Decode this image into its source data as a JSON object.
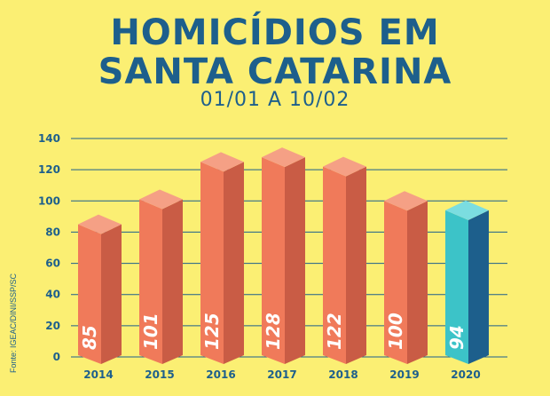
{
  "title_line1": "HOMICÍDIOS EM",
  "title_line2": "SANTA CATARINA",
  "subtitle": "01/01 A 10/02",
  "source": "Fonte: IGEAC/DINI/SSP/SC",
  "colors": {
    "background": "#fbef73",
    "text": "#1d5f8c",
    "bar_front": "#f07a5a",
    "bar_side": "#c95c45",
    "bar_top": "#f5a085",
    "highlight_front": "#3cc3c8",
    "highlight_side": "#1d5f8c",
    "highlight_top": "#7bdde0"
  },
  "chart_data": {
    "type": "bar",
    "title": "HOMICÍDIOS EM SANTA CATARINA",
    "subtitle": "01/01 A 10/02",
    "categories": [
      "2014",
      "2015",
      "2016",
      "2017",
      "2018",
      "2019",
      "2020"
    ],
    "values": [
      85,
      101,
      125,
      128,
      122,
      100,
      94
    ],
    "highlight": "2020",
    "ylim": [
      0,
      140
    ],
    "yticks": [
      0,
      20,
      40,
      60,
      80,
      100,
      120,
      140
    ],
    "grid": true,
    "xlabel": "",
    "ylabel": ""
  }
}
